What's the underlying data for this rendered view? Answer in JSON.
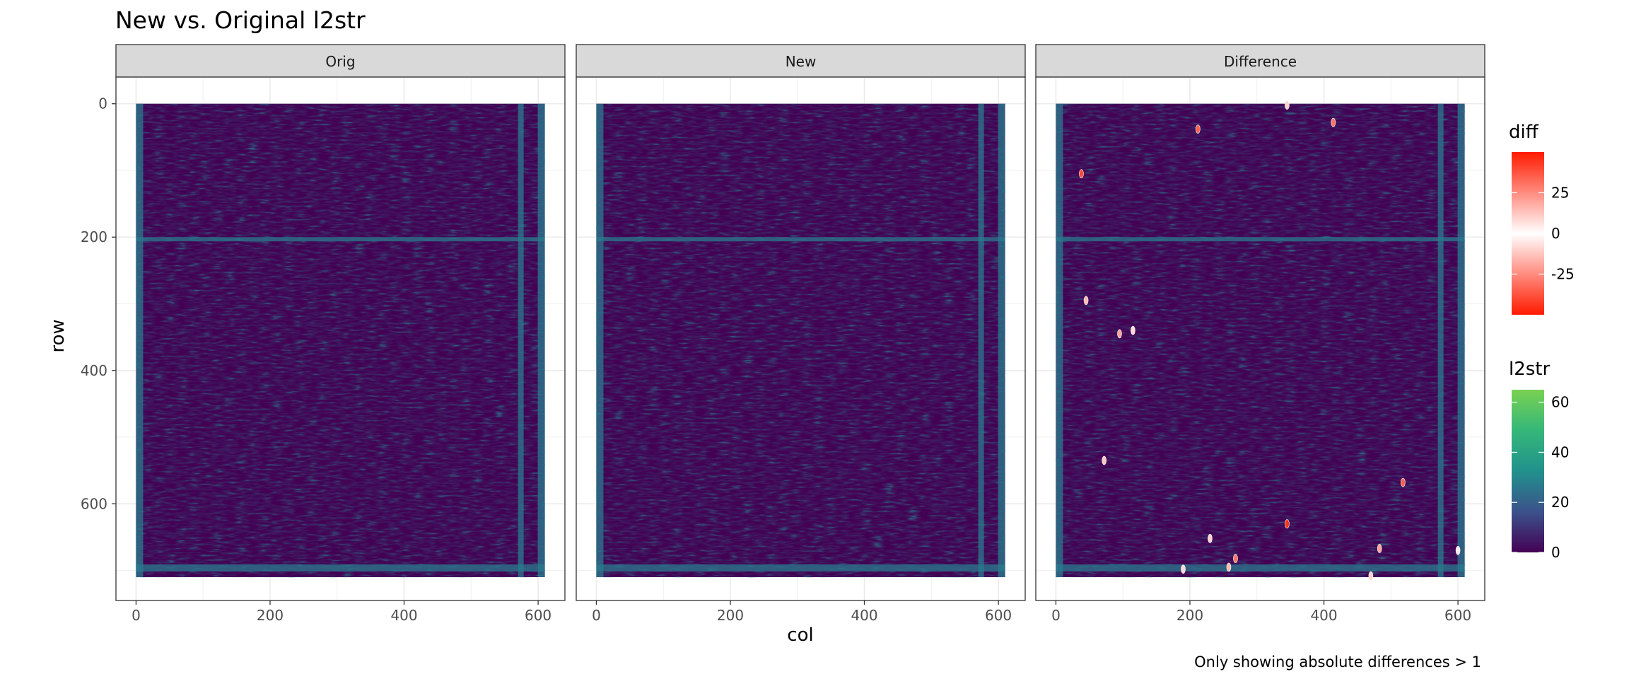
{
  "chart_data": {
    "type": "heatmap",
    "title": "New vs. Original l2str",
    "caption": "Only showing absolute differences > 1",
    "xlabel": "col",
    "ylabel": "row",
    "xlim": [
      -30,
      640
    ],
    "ylim": [
      745,
      -40
    ],
    "x_ticks": [
      0,
      200,
      400,
      600
    ],
    "y_ticks": [
      0,
      200,
      400,
      600
    ],
    "y_reversed": true,
    "grid": true,
    "image_extent": {
      "col": [
        0,
        610
      ],
      "row": [
        0,
        710
      ]
    },
    "panels": [
      {
        "label": "Orig",
        "layer": "l2str"
      },
      {
        "label": "New",
        "layer": "l2str"
      },
      {
        "label": "Difference",
        "layer": "l2str+diff"
      }
    ],
    "l2str_scale": {
      "title": "l2str",
      "palette": "viridis",
      "range": [
        0,
        65
      ],
      "breaks": [
        0,
        20,
        40,
        60
      ],
      "colors": [
        "#440154",
        "#3b528b",
        "#21918c",
        "#5ec962"
      ]
    },
    "diff_scale": {
      "title": "diff",
      "palette": "diverging red-white-red",
      "range": [
        -50,
        50
      ],
      "breaks": [
        25,
        0,
        -25
      ],
      "colors": [
        "#ff2200",
        "#ffffff",
        "#ff2200"
      ]
    },
    "difference_points": [
      {
        "col": 345,
        "row": 2,
        "diff": 10
      },
      {
        "col": 212,
        "row": 38,
        "diff": 35
      },
      {
        "col": 414,
        "row": 28,
        "diff": -30
      },
      {
        "col": 38,
        "row": 105,
        "diff": 40
      },
      {
        "col": 45,
        "row": 295,
        "diff": 15
      },
      {
        "col": 95,
        "row": 345,
        "diff": 20
      },
      {
        "col": 115,
        "row": 340,
        "diff": 8
      },
      {
        "col": 72,
        "row": 535,
        "diff": 12
      },
      {
        "col": 518,
        "row": 568,
        "diff": -35
      },
      {
        "col": 345,
        "row": 630,
        "diff": 45
      },
      {
        "col": 230,
        "row": 652,
        "diff": 10
      },
      {
        "col": 268,
        "row": 682,
        "diff": -30
      },
      {
        "col": 258,
        "row": 695,
        "diff": 15
      },
      {
        "col": 190,
        "row": 698,
        "diff": 8
      },
      {
        "col": 483,
        "row": 667,
        "diff": 20
      },
      {
        "col": 600,
        "row": 670,
        "diff": 5
      },
      {
        "col": 470,
        "row": 708,
        "diff": 10
      }
    ]
  }
}
